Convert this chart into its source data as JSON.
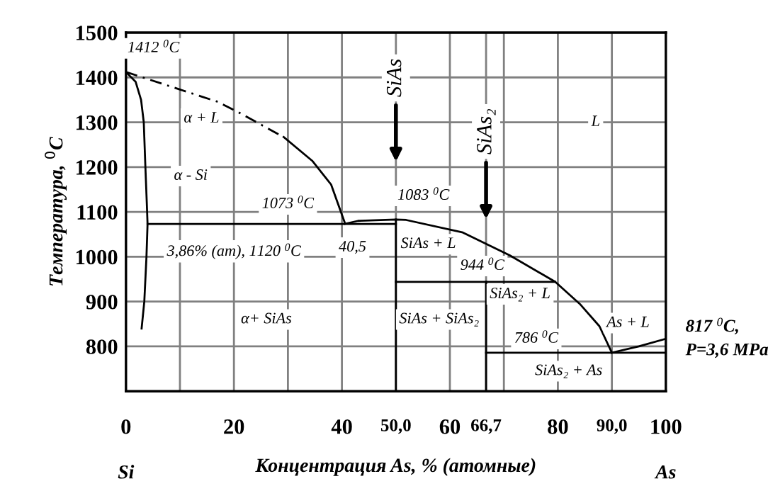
{
  "chart_data": {
    "type": "line",
    "xlabel": "Концентрация As, % (атомные)",
    "ylabel": "Температура, $^{0}$C",
    "xlim": [
      0,
      100
    ],
    "ylim": [
      700,
      1500
    ],
    "xticks": [
      0,
      {
        "value": 10,
        "label": null
      },
      20,
      {
        "value": 30,
        "label": null
      },
      40,
      {
        "value": 50,
        "label": "50,0"
      },
      60,
      {
        "value": 66.7,
        "label": "66,7"
      },
      {
        "value": 70,
        "label": null
      },
      80,
      {
        "value": 90,
        "label": "90,0"
      },
      100
    ],
    "yticks": [
      800,
      900,
      1000,
      1100,
      1200,
      1300,
      1400,
      1500
    ],
    "grid": true,
    "marker": "none",
    "series": [
      {
        "color": "#000000",
        "line_style": "solid",
        "x": [
          0,
          1.8,
          2.8,
          3.3,
          3.6,
          3.86,
          4.0,
          3.8,
          3.4,
          2.9
        ],
        "values": [
          1412,
          1390,
          1350,
          1300,
          1200,
          1120,
          1073,
          1000,
          900,
          840
        ]
      },
      {
        "color": "#000000",
        "line_style": "dashed",
        "x": [
          0,
          16.9,
          20.4,
          29.2
        ],
        "values": [
          1412,
          1346,
          1325,
          1267
        ]
      },
      {
        "color": "#000000",
        "line_style": "solid",
        "x": [
          29.2,
          34.5,
          38,
          40.5
        ],
        "values": [
          1267,
          1214,
          1161,
          1077
        ]
      },
      {
        "color": "#000000",
        "line_style": "solid",
        "x": [
          4.0,
          50
        ],
        "values": [
          1073,
          1073
        ]
      },
      {
        "color": "#000000",
        "line_style": "solid",
        "x": [
          40.5,
          43,
          50,
          51.9,
          62.4,
          71.1,
          79.5,
          84.2,
          87.7,
          90
        ],
        "values": [
          1073,
          1080,
          1083,
          1082,
          1054,
          1003,
          944,
          893,
          845,
          786
        ]
      },
      {
        "color": "#000000",
        "line_style": "solid",
        "x": [
          50,
          50
        ],
        "values": [
          700,
          1083
        ]
      },
      {
        "color": "#000000",
        "line_style": "solid",
        "x": [
          50,
          79.5
        ],
        "values": [
          944,
          944
        ]
      },
      {
        "color": "#000000",
        "line_style": "solid",
        "x": [
          66.7,
          66.7
        ],
        "values": [
          700,
          944
        ]
      },
      {
        "color": "#000000",
        "line_style": "solid",
        "x": [
          66.7,
          100
        ],
        "values": [
          786,
          786
        ]
      },
      {
        "color": "#000000",
        "line_style": "solid",
        "x": [
          90,
          95,
          100
        ],
        "values": [
          786,
          800,
          817
        ]
      }
    ],
    "annotations": [
      {
        "text": "1412 $^{0}$C",
        "x": 0,
        "y": 1412
      },
      {
        "text": "1073 $^{0}$C",
        "x": 30,
        "y": 1073
      },
      {
        "text": "40,5",
        "x": 40.5,
        "y": 1073
      },
      {
        "text": "1083 $^{0}$C",
        "x": 50,
        "y": 1083
      },
      {
        "text": "944 $^{0}$C",
        "x": 62,
        "y": 944
      },
      {
        "text": "786 $^{0}$C",
        "x": 76,
        "y": 786
      },
      {
        "text": "817 $^{0}$C,\nP=3,6 MPa",
        "x": 100,
        "y": 817
      },
      "α + L",
      "α - Si",
      "α+ SiAs",
      "SiAs + L",
      "SiAs₂ + L",
      "SiAs + SiAs₂",
      "As + L",
      "SiAs₂ + As",
      "L",
      "SiAs",
      "SiAs₂",
      "Si",
      "As",
      "3,86% (ат), 1120 $^{0}$C"
    ]
  }
}
